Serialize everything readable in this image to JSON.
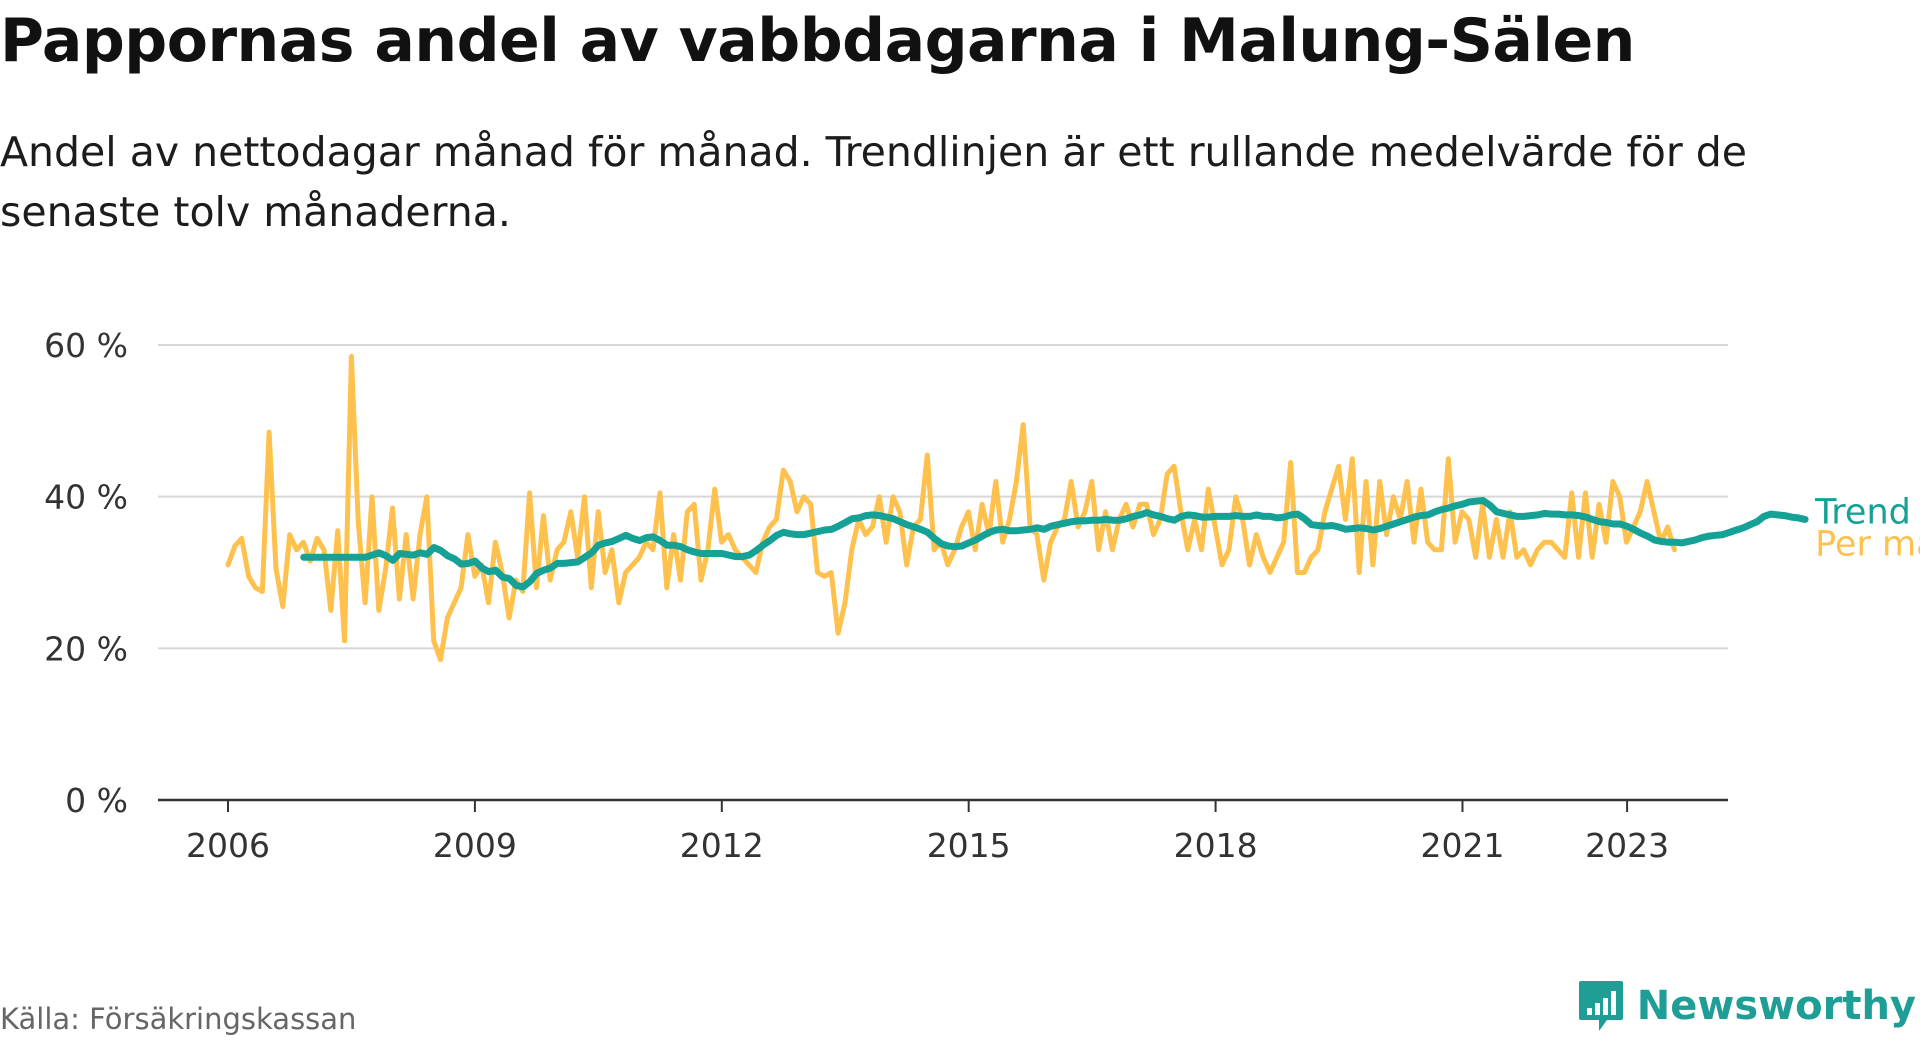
{
  "title": "Pappornas andel av vabbdagarna i Malung-Sälen",
  "subtitle": "Andel av nettodagar månad för månad. Trendlinjen är ett rullande medelvärde för de senaste tolv månaderna.",
  "source": "Källa: Försäkringskassan",
  "brand": "Newsworthy",
  "chart_data": {
    "type": "line",
    "title": "Pappornas andel av vabbdagarna i Malung-Sälen",
    "xlabel": "",
    "ylabel": "",
    "x_ticks": [
      "2006",
      "2009",
      "2012",
      "2015",
      "2018",
      "2021",
      "2023"
    ],
    "x_tick_values": [
      2006,
      2009,
      2012,
      2015,
      2018,
      2021,
      2023
    ],
    "y_ticks": [
      "0 %",
      "20 %",
      "40 %",
      "60 %"
    ],
    "y_tick_values": [
      0,
      20,
      40,
      60
    ],
    "xlim": [
      2006,
      2023.4
    ],
    "ylim": [
      0,
      60
    ],
    "grid": true,
    "colors": {
      "per_manad": "#ffc14d",
      "trend": "#16a196"
    },
    "series": [
      {
        "name": "Per månad",
        "x_start": 2006.0,
        "x_step": 0.0833,
        "values": [
          31,
          33.5,
          34.5,
          29.5,
          28,
          27.5,
          48.5,
          30.5,
          25.5,
          35,
          33,
          34,
          31.5,
          34.5,
          33,
          25,
          35.5,
          21,
          58.5,
          36.5,
          26,
          40,
          25,
          30.5,
          38.5,
          26.5,
          35,
          26.5,
          35,
          40,
          21,
          18.5,
          24,
          26,
          28,
          35,
          29.5,
          31,
          26,
          34,
          30,
          24,
          29,
          27.5,
          40.5,
          28,
          37.5,
          29,
          33,
          34,
          38,
          32,
          40,
          28,
          38,
          30,
          33,
          26,
          30,
          31,
          32,
          34,
          33,
          40.5,
          28,
          35,
          29,
          38,
          39,
          29,
          33,
          41,
          34,
          35,
          33,
          32,
          31,
          30,
          34,
          36,
          37,
          43.5,
          42,
          38,
          40,
          39,
          30,
          29.5,
          30,
          22,
          26,
          33,
          37,
          35,
          36,
          40,
          34,
          40,
          38,
          31,
          36,
          37,
          45.5,
          33,
          34,
          31,
          33,
          36,
          38,
          33,
          39,
          35,
          42,
          34,
          37,
          42,
          49.5,
          36,
          35,
          29,
          34,
          36,
          37,
          42,
          36,
          38,
          42,
          33,
          38,
          33,
          37,
          39,
          36,
          39,
          39,
          35,
          37,
          43,
          44,
          38,
          33,
          37,
          33,
          41,
          36,
          31,
          33,
          40,
          37,
          31,
          35,
          32,
          30,
          32,
          34,
          44.5,
          30,
          30,
          32,
          33,
          38,
          41,
          44,
          37,
          45,
          30,
          42,
          31,
          42,
          35,
          40,
          37,
          42,
          34,
          41,
          34,
          33,
          33,
          45,
          34,
          38,
          37,
          32,
          39,
          32,
          37,
          32,
          38,
          32,
          33,
          31,
          33,
          34,
          34,
          33,
          32,
          40.5,
          32,
          40.5,
          32,
          39,
          34,
          42,
          40,
          34,
          36,
          38,
          42,
          38,
          34,
          36,
          33
        ]
      },
      {
        "name": "Trend",
        "x_start": 2006.92,
        "x_step": 0.0833,
        "values": [
          32,
          32,
          32,
          32,
          32,
          32,
          32,
          32,
          32,
          32,
          32.3,
          32.6,
          32.2,
          31.6,
          32.5,
          32.4,
          32.3,
          32.6,
          32.4,
          33.3,
          32.9,
          32.2,
          31.8,
          31.1,
          31.2,
          31.5,
          30.6,
          30.1,
          30.3,
          29.4,
          29.2,
          28.3,
          28.1,
          28.8,
          29.9,
          30.3,
          30.6,
          31.2,
          31.2,
          31.3,
          31.4,
          32,
          32.6,
          33.6,
          33.9,
          34.1,
          34.5,
          34.9,
          34.5,
          34.2,
          34.6,
          34.7,
          34.2,
          33.6,
          33.6,
          33.4,
          33,
          32.7,
          32.5,
          32.5,
          32.5,
          32.5,
          32.3,
          32.1,
          32.1,
          32.3,
          32.9,
          33.6,
          34.2,
          34.9,
          35.3,
          35.1,
          35,
          35,
          35.2,
          35.4,
          35.6,
          35.7,
          36.1,
          36.6,
          37.1,
          37.2,
          37.5,
          37.6,
          37.5,
          37.3,
          37.1,
          36.7,
          36.3,
          36,
          35.7,
          35.3,
          34.5,
          33.8,
          33.5,
          33.4,
          33.5,
          33.9,
          34.3,
          34.8,
          35.3,
          35.6,
          35.7,
          35.5,
          35.5,
          35.6,
          35.7,
          35.9,
          35.7,
          36.1,
          36.3,
          36.5,
          36.7,
          36.8,
          36.8,
          36.9,
          36.9,
          37,
          36.9,
          36.9,
          37.1,
          37.4,
          37.6,
          37.9,
          37.6,
          37.4,
          37.1,
          36.9,
          37.4,
          37.6,
          37.5,
          37.3,
          37.3,
          37.4,
          37.4,
          37.4,
          37.5,
          37.4,
          37.4,
          37.6,
          37.4,
          37.4,
          37.2,
          37.3,
          37.6,
          37.7,
          37.1,
          36.3,
          36.2,
          36.1,
          36.2,
          36,
          35.7,
          35.8,
          35.9,
          35.8,
          35.6,
          35.8,
          36.1,
          36.4,
          36.7,
          37,
          37.3,
          37.5,
          37.6,
          38,
          38.3,
          38.5,
          38.8,
          39,
          39.3,
          39.4,
          39.5,
          38.9,
          38,
          37.8,
          37.6,
          37.4,
          37.4,
          37.5,
          37.6,
          37.8,
          37.7,
          37.7,
          37.6,
          37.6,
          37.5,
          37.3,
          37,
          36.7,
          36.6,
          36.4,
          36.4,
          36.1,
          35.7,
          35.2,
          34.8,
          34.3,
          34.1,
          34,
          34,
          33.9,
          34.1,
          34.3,
          34.6,
          34.8,
          34.9,
          35,
          35.3,
          35.6,
          35.9,
          36.3,
          36.7,
          37.4,
          37.7,
          37.6,
          37.5,
          37.3,
          37.2,
          37
        ]
      }
    ]
  }
}
